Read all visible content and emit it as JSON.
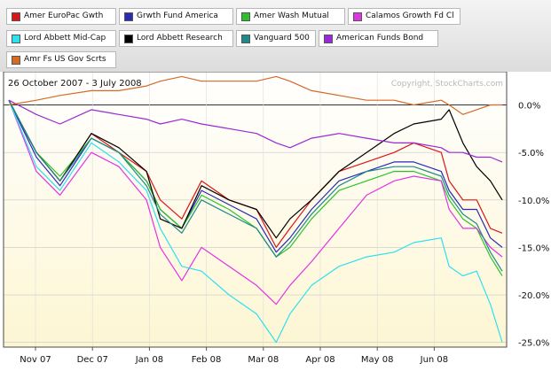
{
  "chart_data": {
    "type": "line",
    "date_range": "26 October 2007 - 3 July 2008",
    "copyright": "Copyright, StockCharts.com",
    "x_tick_labels": [
      "Nov 07",
      "Dec 07",
      "Jan 08",
      "Feb 08",
      "Mar 08",
      "Apr 08",
      "May 08",
      "Jun 08"
    ],
    "y_tick_labels": [
      "0.0%",
      "-5.0%",
      "-10.0%",
      "-15.0%",
      "-20.0%",
      "-25.0%"
    ],
    "y_ticks": [
      0,
      -5,
      -10,
      -15,
      -20,
      -25
    ],
    "ylim": [
      -25.5,
      3.5
    ],
    "grid": true,
    "legend_position": "top",
    "x": [
      "2007-10-26",
      "2007-11-09",
      "2007-11-21",
      "2007-12-07",
      "2007-12-21",
      "2008-01-04",
      "2008-01-11",
      "2008-01-22",
      "2008-02-01",
      "2008-02-15",
      "2008-02-29",
      "2008-03-10",
      "2008-03-17",
      "2008-03-28",
      "2008-04-11",
      "2008-04-25",
      "2008-05-09",
      "2008-05-19",
      "2008-06-02",
      "2008-06-06",
      "2008-06-13",
      "2008-06-20",
      "2008-06-27",
      "2008-07-03"
    ],
    "series": [
      {
        "name": "Amer EuroPac Gwth",
        "color": "#d9171a",
        "values": [
          0.5,
          -5.0,
          -8.0,
          -3.0,
          -5.0,
          -7.0,
          -10.0,
          -12.0,
          -8.0,
          -10.0,
          -11.0,
          -15.0,
          -13.0,
          -10.0,
          -7.0,
          -6.0,
          -5.0,
          -4.0,
          -5.0,
          -8.0,
          -10.0,
          -10.0,
          -13.0,
          -13.5
        ]
      },
      {
        "name": "Grwth Fund America",
        "color": "#2a2ab8",
        "values": [
          0.5,
          -5.5,
          -8.5,
          -3.5,
          -5.0,
          -8.0,
          -11.0,
          -13.0,
          -9.0,
          -10.5,
          -12.0,
          -15.5,
          -14.0,
          -11.0,
          -8.0,
          -7.0,
          -6.0,
          -6.0,
          -7.0,
          -9.0,
          -11.0,
          -11.0,
          -14.0,
          -15.0
        ]
      },
      {
        "name": "Amer Wash Mutual",
        "color": "#2ac42a",
        "values": [
          0.5,
          -5.0,
          -7.5,
          -3.5,
          -5.0,
          -8.0,
          -11.0,
          -13.0,
          -9.5,
          -11.0,
          -13.0,
          -16.0,
          -15.0,
          -12.0,
          -9.0,
          -8.0,
          -7.0,
          -7.0,
          -8.0,
          -10.0,
          -12.0,
          -13.0,
          -16.0,
          -18.0
        ]
      },
      {
        "name": "Calamos Growth Fd Cl",
        "color": "#e234e2",
        "values": [
          0.5,
          -7.0,
          -9.5,
          -5.0,
          -6.5,
          -10.0,
          -15.0,
          -18.5,
          -15.0,
          -17.0,
          -19.0,
          -21.0,
          -19.0,
          -16.5,
          -13.0,
          -9.5,
          -8.0,
          -7.5,
          -8.0,
          -11.0,
          -13.0,
          -13.0,
          -15.0,
          -16.0
        ]
      },
      {
        "name": "Lord Abbett Mid-Cap",
        "color": "#2ee0f0",
        "values": [
          0.5,
          -6.5,
          -9.0,
          -4.0,
          -6.0,
          -9.0,
          -13.0,
          -17.0,
          -17.5,
          -20.0,
          -22.0,
          -25.0,
          -22.0,
          -19.0,
          -17.0,
          -16.0,
          -15.5,
          -14.5,
          -14.0,
          -17.0,
          -18.0,
          -17.5,
          -21.0,
          -25.0
        ]
      },
      {
        "name": "Lord Abbett Research",
        "color": "#000000",
        "values": [
          0.5,
          -5.0,
          -8.0,
          -3.0,
          -4.5,
          -7.0,
          -12.0,
          -13.0,
          -8.5,
          -10.0,
          -11.0,
          -14.0,
          -12.0,
          -10.0,
          -7.0,
          -5.0,
          -3.0,
          -2.0,
          -1.5,
          -0.5,
          -4.0,
          -6.5,
          -8.0,
          -10.0
        ]
      },
      {
        "name": "Vanguard 500",
        "color": "#1e8a8a",
        "values": [
          0.5,
          -5.0,
          -8.0,
          -3.5,
          -5.0,
          -8.5,
          -11.5,
          -13.5,
          -10.0,
          -11.5,
          -13.0,
          -16.0,
          -14.5,
          -11.5,
          -8.5,
          -7.0,
          -6.5,
          -6.5,
          -7.5,
          -9.5,
          -11.5,
          -12.5,
          -15.5,
          -17.5
        ]
      },
      {
        "name": "American Funds Bond",
        "color": "#9a28d6",
        "values": [
          0.5,
          -1.0,
          -2.0,
          -0.5,
          -1.0,
          -1.5,
          -2.0,
          -1.5,
          -2.0,
          -2.5,
          -3.0,
          -4.0,
          -4.5,
          -3.5,
          -3.0,
          -3.5,
          -4.0,
          -4.0,
          -4.5,
          -5.0,
          -5.0,
          -5.5,
          -5.5,
          -6.0
        ]
      },
      {
        "name": "Amr Fs US Gov Scrts",
        "color": "#d46a28",
        "values": [
          0.0,
          0.5,
          1.0,
          1.5,
          1.5,
          2.0,
          2.5,
          3.0,
          2.5,
          2.5,
          2.5,
          3.0,
          2.5,
          1.5,
          1.0,
          0.5,
          0.5,
          0.0,
          0.5,
          0.0,
          -1.0,
          -0.5,
          0.0,
          0.0
        ]
      }
    ]
  }
}
